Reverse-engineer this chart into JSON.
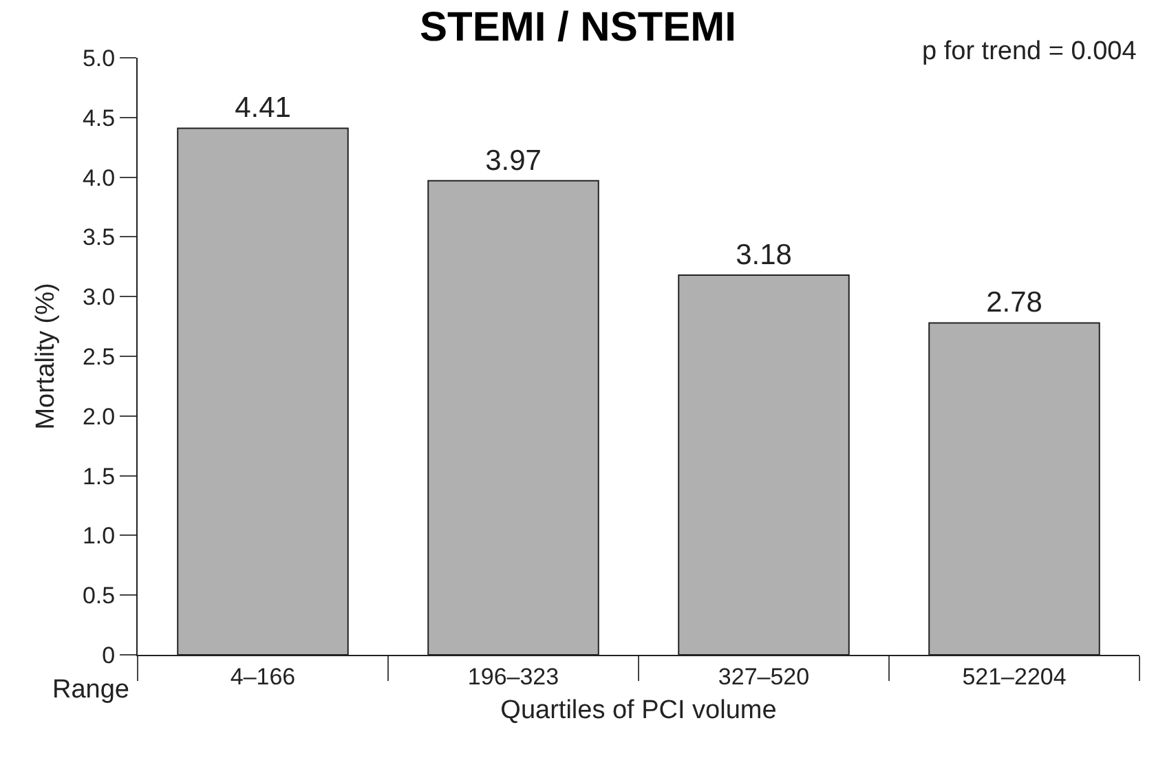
{
  "chart_data": {
    "type": "bar",
    "title": "STEMI / NSTEMI",
    "xlabel": "Quartiles of PCI volume",
    "ylabel": "Mortality (%)",
    "categories": [
      "4–166",
      "196–323",
      "327–520",
      "521–2204"
    ],
    "values": [
      4.41,
      3.97,
      3.18,
      2.78
    ],
    "color": "#b0b0b0",
    "data_labels": true,
    "ylim": [
      0,
      5
    ],
    "yticks": [
      0,
      0.5,
      {
        "value": 1,
        "label": "1.0"
      },
      1.5,
      {
        "value": 2,
        "label": "2.0"
      },
      2.5,
      {
        "value": 3,
        "label": "3.0"
      },
      3.5,
      {
        "value": 4,
        "label": "4.0"
      },
      4.5,
      {
        "value": 5,
        "label": "5.0"
      }
    ],
    "annotations": [
      "p for trend = 0.004",
      "Range"
    ],
    "legend": false
  }
}
